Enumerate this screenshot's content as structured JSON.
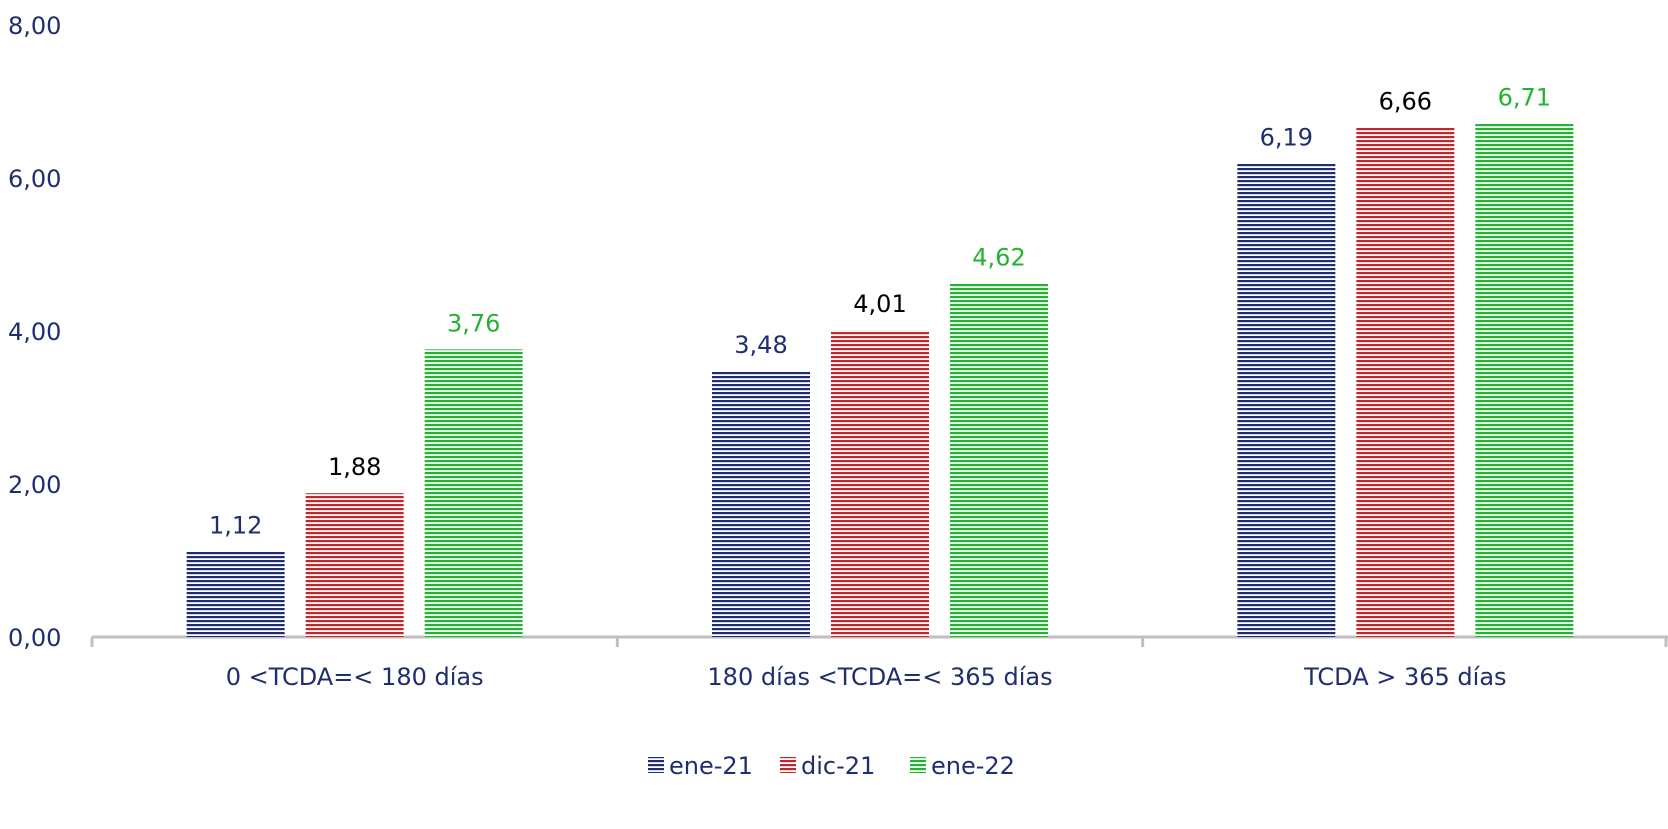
{
  "chart_data": {
    "type": "bar",
    "title": "",
    "xlabel": "",
    "ylabel": "",
    "ylim": [
      0,
      8
    ],
    "y_ticks": [
      "0,00",
      "2,00",
      "4,00",
      "6,00",
      "8,00"
    ],
    "y_tick_values": [
      0,
      2,
      4,
      6,
      8
    ],
    "categories": [
      "0 <TCDA=< 180 días",
      "180 días <TCDA=< 365 días",
      "TCDA > 365 días"
    ],
    "series": [
      {
        "name": "ene-21",
        "values": [
          1.12,
          3.48,
          6.19
        ],
        "labels": [
          "1,12",
          "3,48",
          "6,19"
        ],
        "color": "#1f2e6e",
        "label_color": "#1f2e6e"
      },
      {
        "name": "dic-21",
        "values": [
          1.88,
          4.01,
          6.66
        ],
        "labels": [
          "1,88",
          "4,01",
          "6,66"
        ],
        "color": "#c0282d",
        "label_color": "#000000"
      },
      {
        "name": "ene-22",
        "values": [
          3.76,
          4.62,
          6.71
        ],
        "labels": [
          "3,76",
          "4,62",
          "6,71"
        ],
        "color": "#22b332",
        "label_color": "#22b332"
      }
    ],
    "grid": false,
    "legend_position": "bottom-center",
    "bar_pattern": "horizontal-stripes",
    "axis_text_color": "#1f2e6e",
    "axis_line_color": "#bfbfbf"
  }
}
